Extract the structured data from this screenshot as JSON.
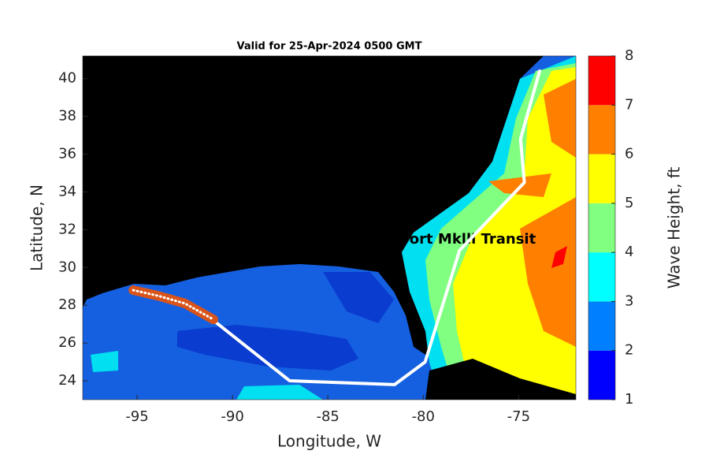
{
  "chart_data": {
    "type": "map",
    "title": "Valid for 25-Apr-2024 0500 GMT",
    "xlabel": "Longitude, W",
    "ylabel": "Latitude, N",
    "xlim": [
      -97.85,
      -72
    ],
    "ylim": [
      23,
      41.2
    ],
    "xticks": [
      -95,
      -90,
      -85,
      -80,
      -75
    ],
    "yticks": [
      24,
      26,
      28,
      30,
      32,
      34,
      36,
      38,
      40
    ],
    "annotation": "ort Mklli Transit",
    "route": {
      "color": "#ffffff",
      "x": [
        -73.9,
        -74.9,
        -74.7,
        -78.1,
        -79.9,
        -81.5,
        -87.0,
        -91.0
      ],
      "y": [
        40.4,
        36.8,
        34.5,
        30.9,
        25.0,
        23.8,
        24.0,
        27.2
      ]
    },
    "highlight": {
      "color": "#d9541a",
      "x": [
        -95.2,
        -93.9,
        -92.5,
        -91.0
      ],
      "y": [
        28.8,
        28.5,
        28.1,
        27.25
      ]
    },
    "colorbar": {
      "label": "Wave Height, ft",
      "lim": [
        1,
        8
      ],
      "ticks": [
        1,
        2,
        3,
        4,
        5,
        6,
        7,
        8
      ],
      "colors": [
        "#0000ff",
        "#0080ff",
        "#00ffff",
        "#80ff80",
        "#ffff00",
        "#ff8000",
        "#ff0000"
      ]
    }
  }
}
